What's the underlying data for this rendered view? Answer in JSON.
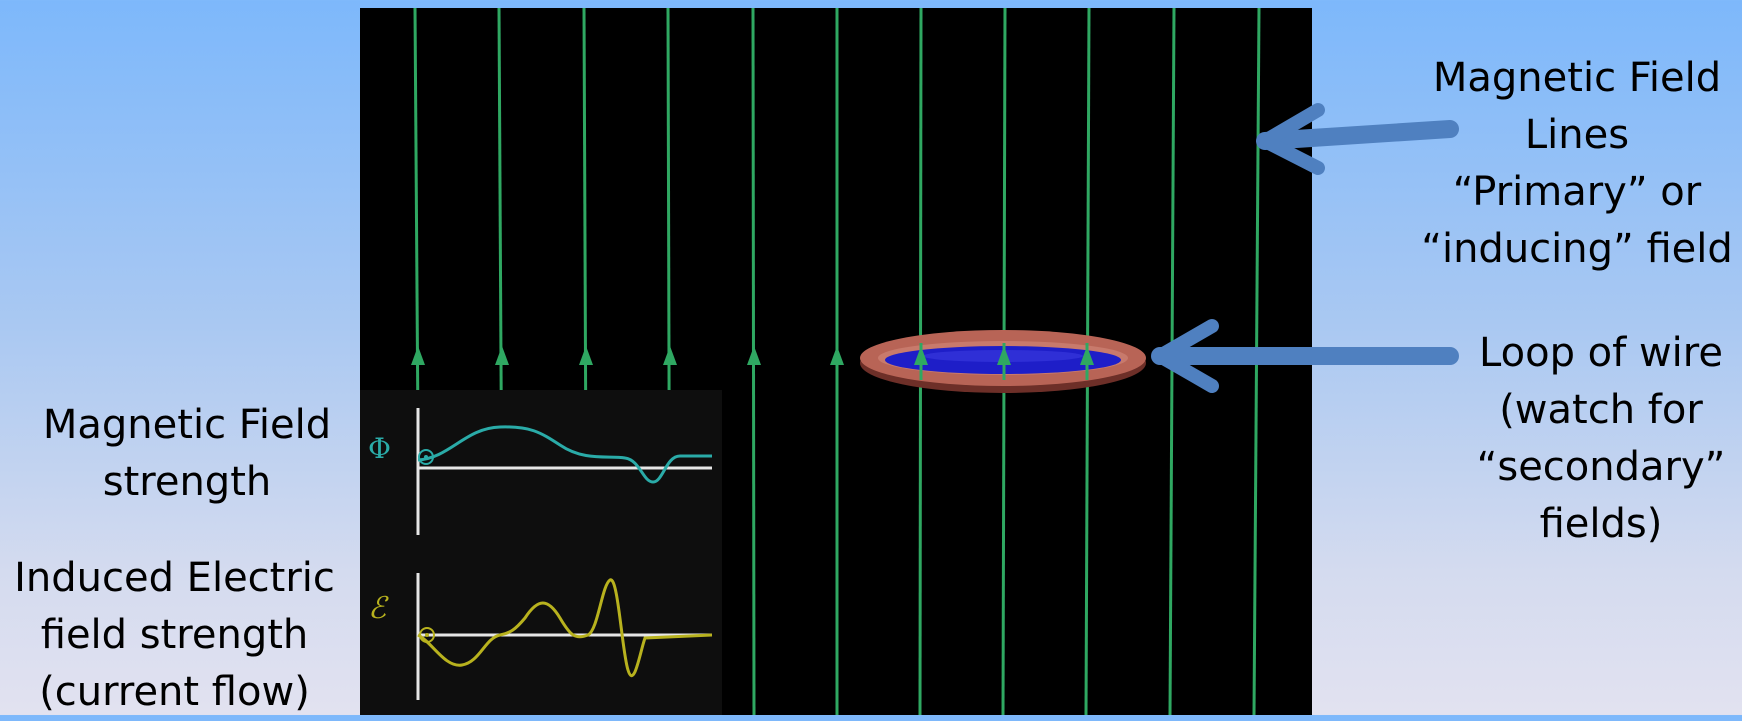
{
  "labels": {
    "field_lines": [
      "Magnetic Field",
      "Lines",
      "“Primary” or",
      "“inducing” field"
    ],
    "loop": [
      "Loop of wire",
      "(watch for",
      "“secondary”",
      "fields)"
    ],
    "field_strength": [
      "Magnetic Field",
      "strength"
    ],
    "electric_field": [
      "Induced Electric",
      "field strength",
      "(current flow)"
    ]
  },
  "graph_symbols": {
    "flux": "Φ",
    "emf": "ℰ"
  },
  "colors": {
    "field_line": "#2fa862",
    "flux_curve": "#2aaba8",
    "emf_curve": "#b8b21e",
    "arrow": "#4f80c0",
    "loop_ring": "#b86456",
    "loop_center": "#1e1ec8"
  },
  "icons": [
    "field-direction-arrow-icon",
    "callout-arrow-icon"
  ]
}
